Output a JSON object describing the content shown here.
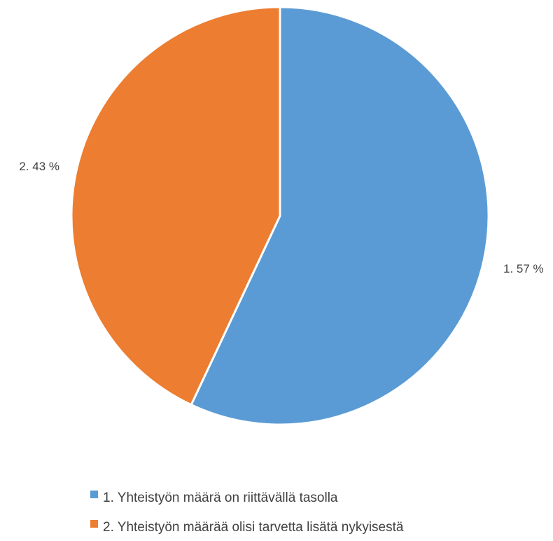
{
  "chart_data": {
    "type": "pie",
    "title": "",
    "legend_position": "bottom",
    "series": [
      {
        "name": "",
        "slices": [
          {
            "label": "1. Yhteistyön määrä on riittävällä tasolla",
            "value": 57,
            "data_label": "1. 57 %",
            "color": "#5B9BD5"
          },
          {
            "label": "2. Yhteistyön määrää olisi tarvetta lisätä nykyisestä",
            "value": 43,
            "data_label": "2. 43 %",
            "color": "#ED7D31"
          }
        ]
      }
    ]
  }
}
